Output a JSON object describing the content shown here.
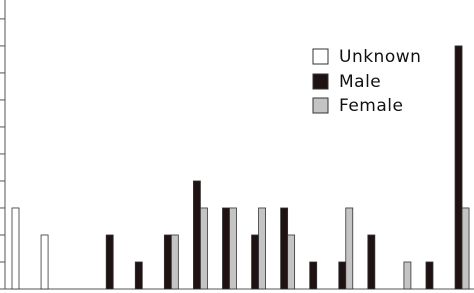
{
  "chart_data": {
    "type": "bar",
    "categories": [
      null,
      null,
      null,
      null,
      null,
      null,
      null,
      null,
      null,
      null,
      null,
      null,
      null,
      null,
      null,
      null
    ],
    "series": [
      {
        "name": "Unknown",
        "color": "#ffffff",
        "values": [
          3,
          2,
          0,
          0,
          0,
          0,
          0,
          0,
          0,
          0,
          0,
          0,
          0,
          0,
          0,
          0
        ]
      },
      {
        "name": "Male",
        "color": "#1e1212",
        "values": [
          0,
          0,
          0,
          2,
          1,
          2,
          4,
          3,
          2,
          3,
          1,
          1,
          2,
          0,
          1,
          9
        ]
      },
      {
        "name": "Female",
        "color": "#c4c4c4",
        "values": [
          0,
          0,
          0,
          0,
          0,
          2,
          3,
          3,
          3,
          2,
          0,
          3,
          0,
          1,
          0,
          3
        ]
      }
    ],
    "ylim": [
      0,
      10.7
    ],
    "yticks": [
      0,
      1,
      2,
      3,
      4,
      5,
      6,
      7,
      8,
      9,
      10
    ]
  }
}
